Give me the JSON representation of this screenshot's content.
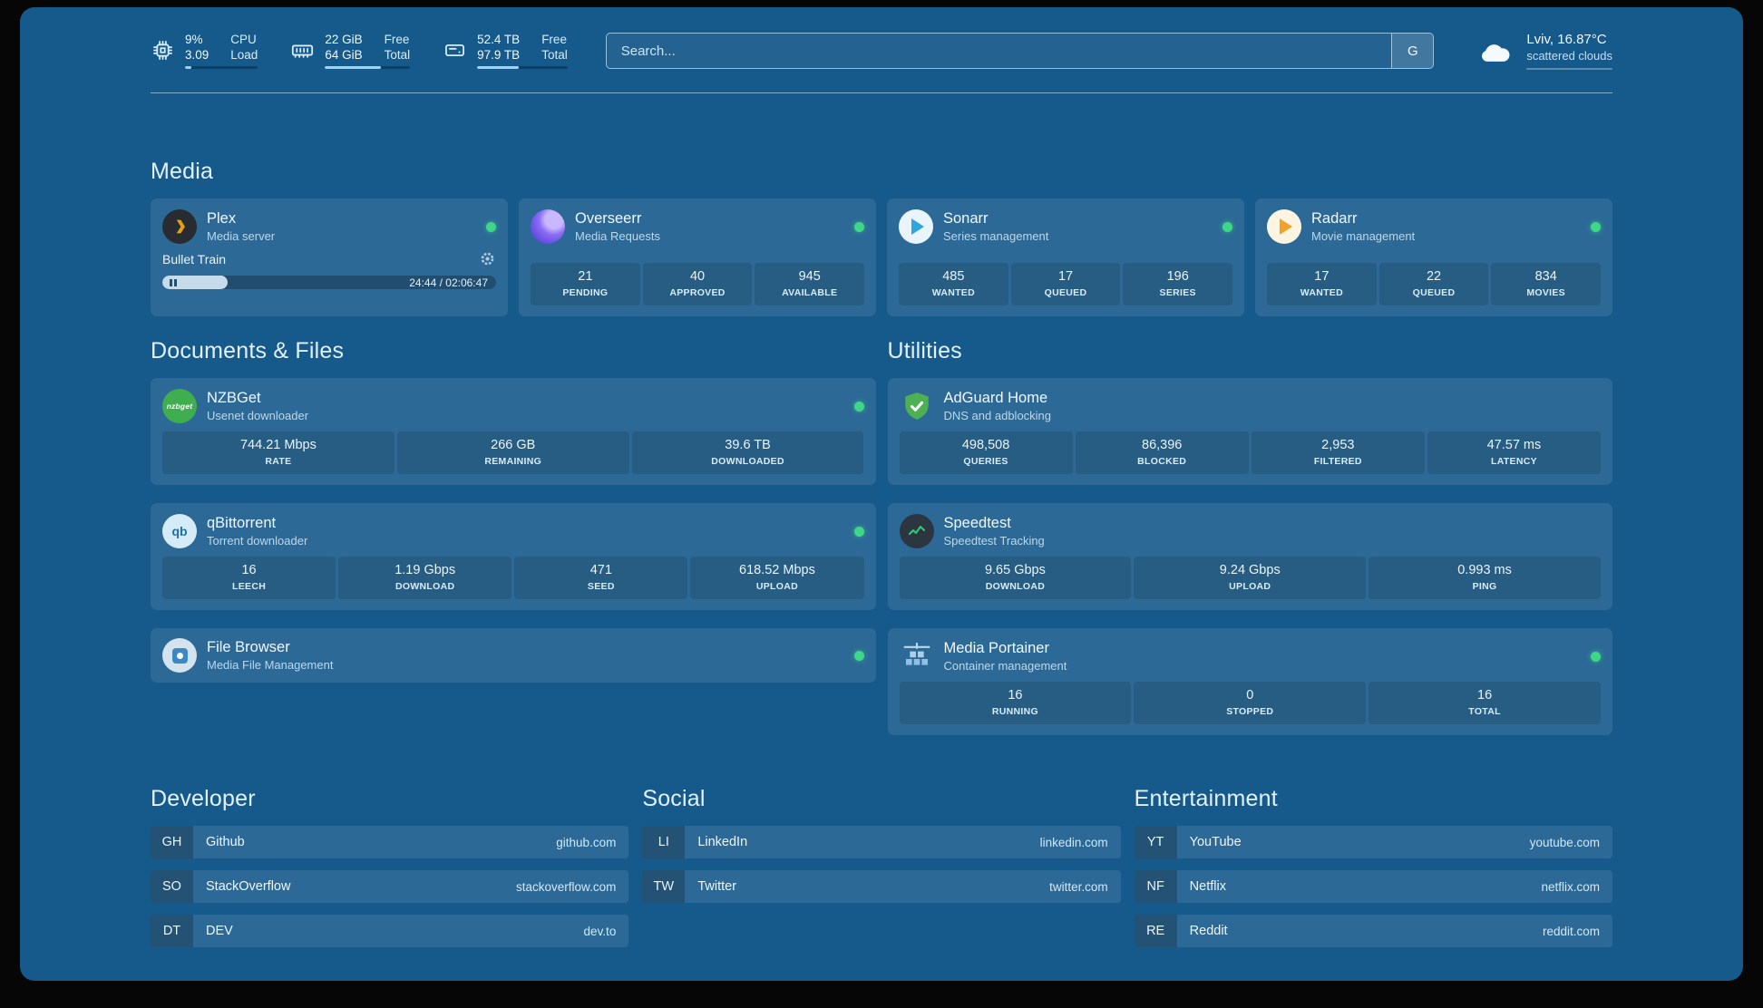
{
  "colors": {
    "panel_bg": "#16598b",
    "card_overlay": "rgba(255,255,255,0.10)",
    "status_green": "#3fd68a",
    "accent_light_blue": "#9ed3f2",
    "plex_amber": "#e5a00d"
  },
  "icon_text": {
    "nzbget": "nzbget",
    "qbittorrent": "qb"
  },
  "header": {
    "cpu": {
      "value_top": "9%",
      "value_bottom": "3.09",
      "label_top": "CPU",
      "label_bottom": "Load",
      "bar_pct": 9
    },
    "memory": {
      "value_top": "22 GiB",
      "value_bottom": "64 GiB",
      "label_top": "Free",
      "label_bottom": "Total",
      "bar_pct": 66
    },
    "disk": {
      "value_top": "52.4 TB",
      "value_bottom": "97.9 TB",
      "label_top": "Free",
      "label_bottom": "Total",
      "bar_pct": 46
    },
    "search": {
      "placeholder": "Search...",
      "provider_label": "G"
    },
    "weather": {
      "location": "Lviv, 16.87°C",
      "condition": "scattered clouds"
    }
  },
  "media": {
    "title": "Media",
    "plex": {
      "name": "Plex",
      "desc": "Media server",
      "now_playing": "Bullet Train",
      "time": "24:44 / 02:06:47",
      "progress_pct": 19.5
    },
    "overseerr": {
      "name": "Overseerr",
      "desc": "Media Requests",
      "stats": [
        {
          "value": "21",
          "label": "PENDING"
        },
        {
          "value": "40",
          "label": "APPROVED"
        },
        {
          "value": "945",
          "label": "AVAILABLE"
        }
      ]
    },
    "sonarr": {
      "name": "Sonarr",
      "desc": "Series management",
      "stats": [
        {
          "value": "485",
          "label": "WANTED"
        },
        {
          "value": "17",
          "label": "QUEUED"
        },
        {
          "value": "196",
          "label": "SERIES"
        }
      ]
    },
    "radarr": {
      "name": "Radarr",
      "desc": "Movie management",
      "stats": [
        {
          "value": "17",
          "label": "WANTED"
        },
        {
          "value": "22",
          "label": "QUEUED"
        },
        {
          "value": "834",
          "label": "MOVIES"
        }
      ]
    }
  },
  "documents": {
    "title": "Documents & Files",
    "nzbget": {
      "name": "NZBGet",
      "desc": "Usenet downloader",
      "stats": [
        {
          "value": "744.21 Mbps",
          "label": "RATE"
        },
        {
          "value": "266 GB",
          "label": "REMAINING"
        },
        {
          "value": "39.6 TB",
          "label": "DOWNLOADED"
        }
      ]
    },
    "qbittorrent": {
      "name": "qBittorrent",
      "desc": "Torrent downloader",
      "stats": [
        {
          "value": "16",
          "label": "LEECH"
        },
        {
          "value": "1.19 Gbps",
          "label": "DOWNLOAD"
        },
        {
          "value": "471",
          "label": "SEED"
        },
        {
          "value": "618.52 Mbps",
          "label": "UPLOAD"
        }
      ]
    },
    "filebrowser": {
      "name": "File Browser",
      "desc": "Media File Management"
    }
  },
  "utilities": {
    "title": "Utilities",
    "adguard": {
      "name": "AdGuard Home",
      "desc": "DNS and adblocking",
      "stats": [
        {
          "value": "498,508",
          "label": "QUERIES"
        },
        {
          "value": "86,396",
          "label": "BLOCKED"
        },
        {
          "value": "2,953",
          "label": "FILTERED"
        },
        {
          "value": "47.57 ms",
          "label": "LATENCY"
        }
      ]
    },
    "speedtest": {
      "name": "Speedtest",
      "desc": "Speedtest Tracking",
      "stats": [
        {
          "value": "9.65 Gbps",
          "label": "DOWNLOAD"
        },
        {
          "value": "9.24 Gbps",
          "label": "UPLOAD"
        },
        {
          "value": "0.993 ms",
          "label": "PING"
        }
      ]
    },
    "portainer": {
      "name": "Media Portainer",
      "desc": "Container management",
      "stats": [
        {
          "value": "16",
          "label": "RUNNING"
        },
        {
          "value": "0",
          "label": "STOPPED"
        },
        {
          "value": "16",
          "label": "TOTAL"
        }
      ]
    }
  },
  "bookmarks": {
    "developer": {
      "title": "Developer",
      "links": [
        {
          "abbr": "GH",
          "name": "Github",
          "url": "github.com"
        },
        {
          "abbr": "SO",
          "name": "StackOverflow",
          "url": "stackoverflow.com"
        },
        {
          "abbr": "DT",
          "name": "DEV",
          "url": "dev.to"
        }
      ]
    },
    "social": {
      "title": "Social",
      "links": [
        {
          "abbr": "LI",
          "name": "LinkedIn",
          "url": "linkedin.com"
        },
        {
          "abbr": "TW",
          "name": "Twitter",
          "url": "twitter.com"
        }
      ]
    },
    "entertainment": {
      "title": "Entertainment",
      "links": [
        {
          "abbr": "YT",
          "name": "YouTube",
          "url": "youtube.com"
        },
        {
          "abbr": "NF",
          "name": "Netflix",
          "url": "netflix.com"
        },
        {
          "abbr": "RE",
          "name": "Reddit",
          "url": "reddit.com"
        }
      ]
    }
  }
}
